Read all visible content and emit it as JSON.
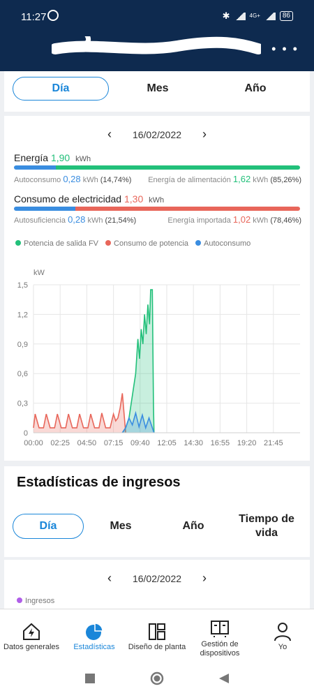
{
  "status": {
    "time": "11:27",
    "network": "4G+",
    "battery": "86"
  },
  "tabs1": [
    "Día",
    "Mes",
    "Año"
  ],
  "date_nav": {
    "date": "16/02/2022"
  },
  "energia": {
    "label": "Energía",
    "value": "1,90",
    "unit": "kWh",
    "autoconsumo_label": "Autoconsumo",
    "autoconsumo_value": "0,28",
    "autoconsumo_unit": "kWh",
    "autoconsumo_pct": "(14,74%)",
    "alimentacion_label": "Energía de alimentación",
    "alimentacion_value": "1,62",
    "alimentacion_unit": "kWh",
    "alimentacion_pct": "(85,26%)",
    "autoconsumo_fraction": 0.1474
  },
  "consumo": {
    "label": "Consumo de electricidad",
    "value": "1,30",
    "unit": "kWh",
    "autosuf_label": "Autosuficiencia",
    "autosuf_value": "0,28",
    "autosuf_unit": "kWh",
    "autosuf_pct": "(21,54%)",
    "importada_label": "Energía importada",
    "importada_value": "1,02",
    "importada_unit": "kWh",
    "importada_pct": "(78,46%)",
    "autosuf_fraction": 0.2154
  },
  "legend": {
    "pv": "Potencia de salida FV",
    "consumption": "Consumo de potencia",
    "self": "Autoconsumo"
  },
  "colors": {
    "accent": "#1a86d9",
    "green": "#22c07a",
    "red": "#e8665a",
    "blue": "#3a8de0",
    "purple": "#b05ee8",
    "header": "#0e2a4f"
  },
  "chart_data": {
    "type": "area",
    "ylabel": "kW",
    "yticks": [
      "1,5",
      "1,2",
      "0,9",
      "0,6",
      "0,3",
      "0"
    ],
    "ylim": [
      0,
      1.5
    ],
    "xticks": [
      "00:00",
      "02:25",
      "04:50",
      "07:15",
      "09:40",
      "12:05",
      "14:30",
      "16:55",
      "19:20",
      "21:45"
    ],
    "x_range_hours": [
      0,
      24
    ],
    "grid": true,
    "legend_placement": "top",
    "series": [
      {
        "name": "Potencia de salida FV",
        "color": "#22c07a",
        "x": [
          8.0,
          8.3,
          8.6,
          8.8,
          9.0,
          9.2,
          9.4,
          9.55,
          9.7,
          9.85,
          10.0,
          10.15,
          10.3,
          10.45,
          10.55,
          10.7,
          10.8,
          10.85
        ],
        "y": [
          0,
          0.05,
          0.15,
          0.3,
          0.45,
          0.6,
          0.95,
          0.75,
          1.05,
          0.9,
          1.2,
          1.0,
          1.3,
          1.1,
          1.45,
          1.45,
          0.3,
          0
        ]
      },
      {
        "name": "Consumo de potencia",
        "color": "#e8665a",
        "x": [
          0,
          0.15,
          0.5,
          0.7,
          0.9,
          1.15,
          1.5,
          1.7,
          1.9,
          2.15,
          2.5,
          2.7,
          2.9,
          3.15,
          3.5,
          3.7,
          3.9,
          4.15,
          4.5,
          4.7,
          4.9,
          5.15,
          5.5,
          5.7,
          5.9,
          6.15,
          6.5,
          6.7,
          6.9,
          7.2,
          7.4,
          7.6,
          7.8,
          8.0,
          8.3
        ],
        "y": [
          0.05,
          0.19,
          0.05,
          0.05,
          0.05,
          0.19,
          0.05,
          0.05,
          0.05,
          0.19,
          0.05,
          0.05,
          0.05,
          0.19,
          0.05,
          0.05,
          0.05,
          0.19,
          0.05,
          0.05,
          0.05,
          0.19,
          0.05,
          0.05,
          0.05,
          0.2,
          0.05,
          0.05,
          0.05,
          0.19,
          0.12,
          0.15,
          0.25,
          0.4,
          0
        ]
      },
      {
        "name": "Autoconsumo",
        "color": "#3a8de0",
        "x": [
          8.0,
          8.3,
          8.6,
          8.9,
          9.2,
          9.5,
          9.8,
          10.1,
          10.4,
          10.7,
          10.85
        ],
        "y": [
          0,
          0.05,
          0.15,
          0.08,
          0.2,
          0.06,
          0.18,
          0.05,
          0.15,
          0.05,
          0
        ]
      }
    ]
  },
  "ingresos": {
    "title": "Estadísticas de ingresos",
    "tabs": [
      "Día",
      "Mes",
      "Año",
      "Tiempo de vida"
    ],
    "date": "16/02/2022",
    "legend": "Ingresos"
  },
  "nav": {
    "items": [
      {
        "label": "Datos generales",
        "icon": "home-bolt-icon"
      },
      {
        "label": "Estadísticas",
        "icon": "pie-chart-icon"
      },
      {
        "label": "Diseño de planta",
        "icon": "layout-icon"
      },
      {
        "label": "Gestión de dispositivos",
        "icon": "device-icon"
      },
      {
        "label": "Yo",
        "icon": "user-icon"
      }
    ]
  }
}
